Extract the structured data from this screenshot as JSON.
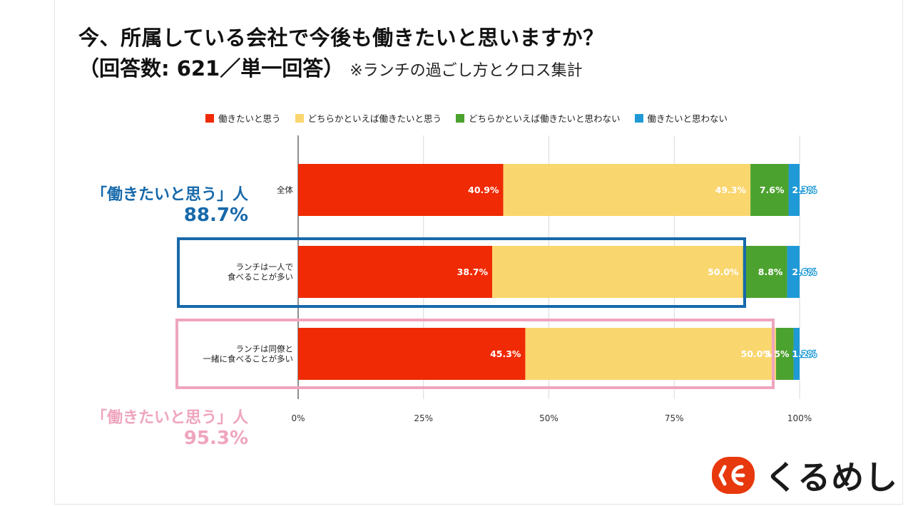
{
  "title": {
    "line1": "今、所属している会社で今後も働きたいと思いますか？",
    "line2_main": "（回答数: 621／単一回答）",
    "line2_note": "※ランチの過ごし方とクロス集計"
  },
  "colors": {
    "want": "#f02a05",
    "somewhat_want": "#fad66e",
    "somewhat_not": "#4ca22e",
    "not_want": "#1f9ad6",
    "blue_box": "#1769aa",
    "pink_box": "#efa5be"
  },
  "callouts": [
    {
      "label": "「働きたいと思う」人",
      "value": "88.7%",
      "color": "#1769aa"
    },
    {
      "label": "「働きたいと思う」人",
      "value": "95.3%",
      "color": "#efa5be"
    }
  ],
  "logo": {
    "text": "くるめし",
    "icon": "kurumeshi-logo-icon"
  },
  "chart_data": {
    "type": "bar",
    "orientation": "horizontal",
    "stacked": true,
    "categories": [
      [
        "全体"
      ],
      [
        "ランチは一人で",
        "食べることが多い"
      ],
      [
        "ランチは同僚と",
        "一緒に食べることが多い"
      ]
    ],
    "series": [
      {
        "name": "働きたいと思う",
        "color": "#f02a05",
        "values": [
          40.9,
          38.7,
          45.3
        ],
        "labels": [
          "40.9%",
          "38.7%",
          "45.3%"
        ]
      },
      {
        "name": "どちらかといえば働きたいと思う",
        "color": "#fad66e",
        "values": [
          49.3,
          50.0,
          50.0
        ],
        "labels": [
          "49.3%",
          "50.0%",
          "50.0%"
        ]
      },
      {
        "name": "どちらかといえば働きたいと思わない",
        "color": "#4ca22e",
        "values": [
          7.6,
          8.8,
          3.5
        ],
        "labels": [
          "7.6%",
          "8.8%",
          "3.5%"
        ]
      },
      {
        "name": "働きたいと思わない",
        "color": "#1f9ad6",
        "values": [
          2.3,
          2.6,
          1.2
        ],
        "labels": [
          "2.3%",
          "2.6%",
          "1.2%"
        ]
      }
    ],
    "xlim": [
      0,
      100
    ],
    "xticks": [
      0,
      25,
      50,
      75,
      100
    ],
    "xtick_labels": [
      "0%",
      "25%",
      "50%",
      "75%",
      "100%"
    ],
    "grid": true,
    "legend": "top"
  }
}
